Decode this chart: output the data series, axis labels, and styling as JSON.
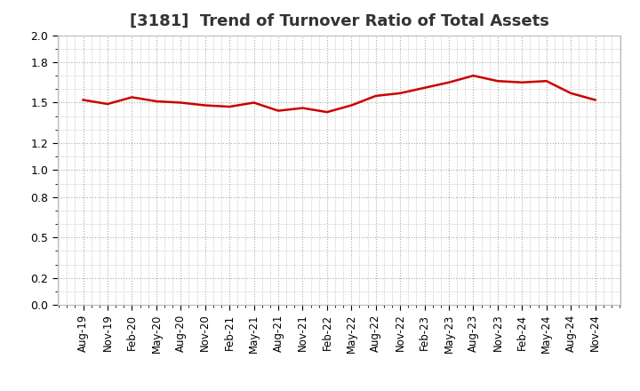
{
  "title": "[3181]  Trend of Turnover Ratio of Total Assets",
  "title_fontsize": 13,
  "title_fontweight": "bold",
  "title_color": "#333333",
  "line_color": "#cc0000",
  "line_width": 1.8,
  "background_color": "#ffffff",
  "plot_bg_color": "#ffffff",
  "grid_color": "#aaaaaa",
  "ylim": [
    0.0,
    2.0
  ],
  "yticks": [
    0.0,
    0.2,
    0.5,
    0.8,
    1.0,
    1.2,
    1.5,
    1.8,
    2.0
  ],
  "x_labels": [
    "Aug-19",
    "Nov-19",
    "Feb-20",
    "May-20",
    "Aug-20",
    "Nov-20",
    "Feb-21",
    "May-21",
    "Aug-21",
    "Nov-21",
    "Feb-22",
    "May-22",
    "Aug-22",
    "Nov-22",
    "Feb-23",
    "May-23",
    "Aug-23",
    "Nov-23",
    "Feb-24",
    "May-24",
    "Aug-24",
    "Nov-24"
  ],
  "values": [
    1.52,
    1.49,
    1.54,
    1.51,
    1.5,
    1.48,
    1.47,
    1.5,
    1.44,
    1.46,
    1.43,
    1.48,
    1.55,
    1.57,
    1.61,
    1.65,
    1.7,
    1.66,
    1.65,
    1.66,
    1.57,
    1.52
  ]
}
